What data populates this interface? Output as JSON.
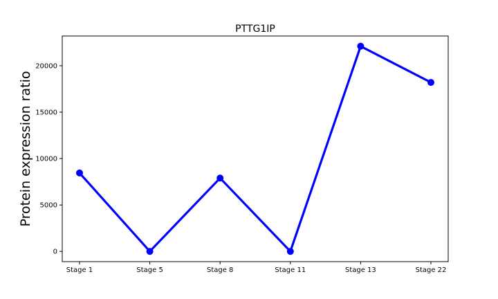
{
  "chart_data": {
    "type": "line",
    "title": "PTTG1IP",
    "xlabel": "",
    "ylabel": "Protein expression ratio",
    "categories": [
      "Stage 1",
      "Stage 5",
      "Stage 8",
      "Stage 11",
      "Stage 13",
      "Stage 22"
    ],
    "series": [
      {
        "values": [
          8450,
          0,
          7900,
          0,
          22100,
          18200
        ]
      }
    ],
    "ylim": [
      -1100,
      23200
    ],
    "yticks": [
      "0",
      "5000",
      "10000",
      "15000",
      "20000"
    ],
    "grid": false,
    "legend": "none",
    "line_color": "#0000ff"
  }
}
